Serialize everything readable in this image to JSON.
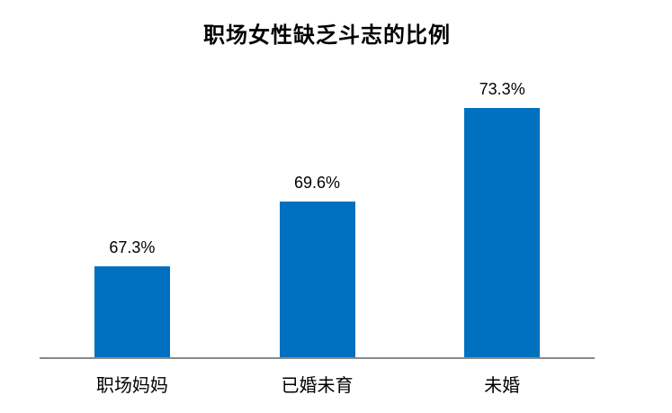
{
  "chart_data": {
    "type": "bar",
    "title": "职场女性缺乏斗志的比例",
    "categories": [
      "职场妈妈",
      "已婚未育",
      "未婚"
    ],
    "values": [
      67.3,
      69.6,
      73.3
    ],
    "value_labels": [
      "67.3%",
      "69.6%",
      "73.3%"
    ],
    "xlabel": "",
    "ylabel": "",
    "ylim": [
      64,
      74
    ],
    "grid": false,
    "legend": false,
    "colors": {
      "bar": "#0070C0",
      "axis_line": "#898989",
      "text": "#000000",
      "background": "#FFFFFF"
    }
  }
}
